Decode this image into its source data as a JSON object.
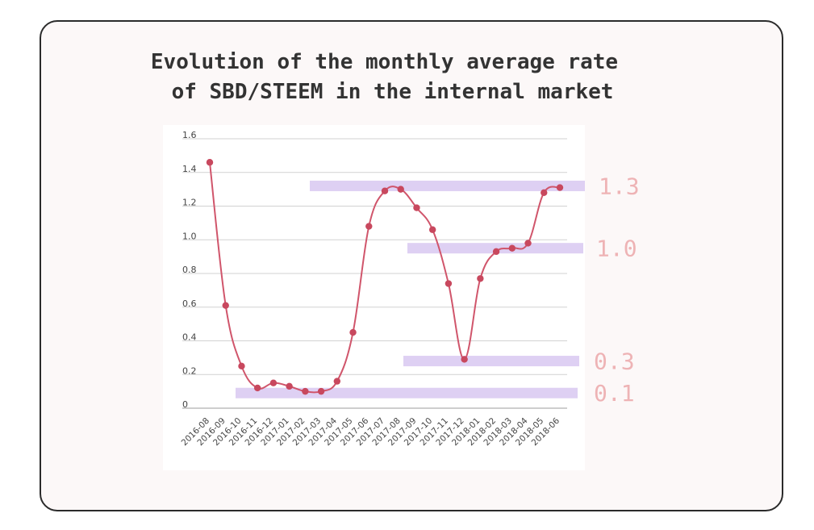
{
  "title_line1": "Evolution of the monthly average rate",
  "title_line2": "of SBD/STEEM in the internal market",
  "chart_data": {
    "type": "line",
    "title": "Evolution of the monthly average rate of SBD/STEEM in the internal market",
    "xlabel": "",
    "ylabel": "",
    "ylim": [
      0,
      1.6
    ],
    "yticks": [
      "0",
      "0.2",
      "0.4",
      "0.6",
      "0.8",
      "1.0",
      "1.2",
      "1.4",
      "1.6"
    ],
    "grid": true,
    "categories": [
      "2016-08",
      "2016-09",
      "2016-10",
      "2016-11",
      "2016-12",
      "2017-01",
      "2017-02",
      "2017-03",
      "2017-04",
      "2017-05",
      "2017-06",
      "2017-07",
      "2017-08",
      "2017-09",
      "2017-10",
      "2017-11",
      "2017-12",
      "2018-01",
      "2018-02",
      "2018-03",
      "2018-04",
      "2018-05",
      "2018-06"
    ],
    "values": [
      1.46,
      0.61,
      0.25,
      0.12,
      0.15,
      0.13,
      0.1,
      0.1,
      0.16,
      0.45,
      1.08,
      1.29,
      1.3,
      1.19,
      1.06,
      0.74,
      0.29,
      0.77,
      0.93,
      0.95,
      0.98,
      1.28,
      1.31
    ],
    "line_color": "#d0556b",
    "band_color": "#dccdf2",
    "label_color": "#eeb3b5",
    "bands": [
      {
        "label": "1.3",
        "value": 1.32,
        "from": "2017-03",
        "to": "2018-06"
      },
      {
        "label": "1.0",
        "value": 0.95,
        "from": "2017-09",
        "to": "2018-06"
      },
      {
        "label": "0.3",
        "value": 0.28,
        "from": "2017-09",
        "to": "2018-06"
      },
      {
        "label": "0.1",
        "value": 0.09,
        "from": "2016-10",
        "to": "2018-06"
      }
    ]
  }
}
